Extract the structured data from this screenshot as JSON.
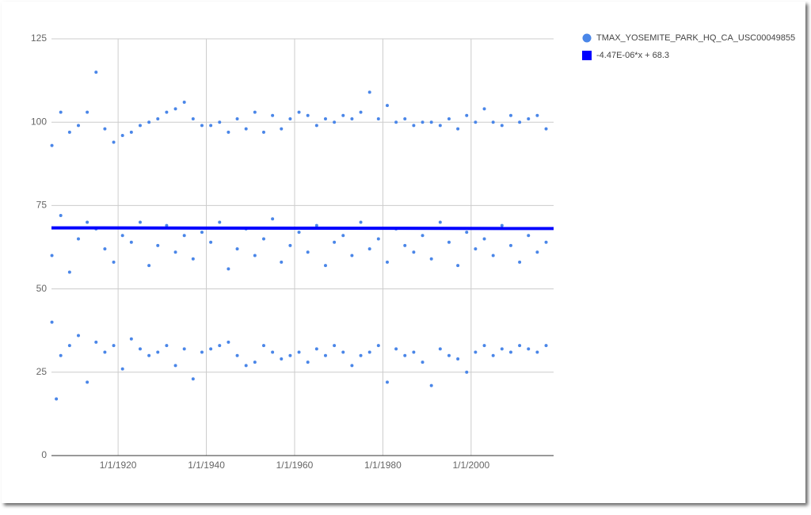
{
  "chart_data": {
    "type": "scatter",
    "xlim": [
      1904.9,
      2018.7
    ],
    "ylim": [
      0,
      125
    ],
    "yticks": [
      0,
      25,
      50,
      75,
      100,
      125
    ],
    "xticks": [
      {
        "value": 1920,
        "label": "1/1/1920"
      },
      {
        "value": 1940,
        "label": "1/1/1940"
      },
      {
        "value": 1960,
        "label": "1/1/1960"
      },
      {
        "value": 1980,
        "label": "1/1/1980"
      },
      {
        "value": 2000,
        "label": "1/1/2000"
      }
    ],
    "grid": true,
    "legend": "right",
    "series": [
      {
        "name": "TMAX_YOSEMITE_PARK_HQ_CA_USC00049855",
        "type": "scatter",
        "color": "#4a86e8",
        "x": [
          1905,
          1907,
          1909,
          1911,
          1913,
          1915,
          1917,
          1919,
          1921,
          1923,
          1925,
          1927,
          1929,
          1931,
          1933,
          1935,
          1937,
          1939,
          1941,
          1943,
          1945,
          1947,
          1949,
          1951,
          1953,
          1955,
          1957,
          1959,
          1961,
          1963,
          1965,
          1967,
          1969,
          1971,
          1973,
          1975,
          1977,
          1979,
          1981,
          1983,
          1985,
          1987,
          1989,
          1991,
          1993,
          1995,
          1997,
          1999,
          2001,
          2003,
          2005,
          2007,
          2009,
          2011,
          2013,
          2015,
          2017,
          1905,
          1907,
          1909,
          1911,
          1913,
          1915,
          1917,
          1919,
          1921,
          1923,
          1925,
          1927,
          1929,
          1931,
          1933,
          1935,
          1937,
          1939,
          1941,
          1943,
          1945,
          1947,
          1949,
          1951,
          1953,
          1955,
          1957,
          1959,
          1961,
          1963,
          1965,
          1967,
          1969,
          1971,
          1973,
          1975,
          1977,
          1979,
          1981,
          1983,
          1985,
          1987,
          1989,
          1991,
          1993,
          1995,
          1997,
          1999,
          2001,
          2003,
          2005,
          2007,
          2009,
          2011,
          2013,
          2015,
          2017,
          1905,
          1907,
          1909,
          1911,
          1913,
          1915,
          1917,
          1919,
          1921,
          1923,
          1925,
          1927,
          1929,
          1931,
          1933,
          1935,
          1937,
          1939,
          1941,
          1943,
          1945,
          1947,
          1949,
          1951,
          1953,
          1955,
          1957,
          1959,
          1961,
          1963,
          1965,
          1967,
          1969,
          1971,
          1973,
          1975,
          1977,
          1979,
          1981,
          1983,
          1985,
          1987,
          1989,
          1991,
          1993,
          1995,
          1997,
          1999,
          2001,
          2003,
          2005,
          2007,
          2009,
          2011,
          2013,
          2015,
          2017,
          1906
        ],
        "values": [
          93,
          103,
          97,
          99,
          103,
          115,
          98,
          94,
          96,
          97,
          99,
          100,
          101,
          103,
          104,
          106,
          101,
          99,
          99,
          100,
          97,
          101,
          98,
          103,
          97,
          102,
          98,
          101,
          103,
          102,
          99,
          101,
          100,
          102,
          101,
          103,
          109,
          101,
          105,
          100,
          101,
          99,
          100,
          100,
          99,
          101,
          98,
          102,
          100,
          104,
          100,
          99,
          102,
          100,
          101,
          102,
          98,
          60,
          72,
          55,
          65,
          70,
          68,
          62,
          58,
          66,
          64,
          70,
          57,
          63,
          69,
          61,
          66,
          59,
          67,
          64,
          70,
          56,
          62,
          68,
          60,
          65,
          71,
          58,
          63,
          67,
          61,
          69,
          57,
          64,
          66,
          60,
          70,
          62,
          65,
          58,
          68,
          63,
          61,
          66,
          59,
          70,
          64,
          57,
          67,
          62,
          65,
          60,
          69,
          63,
          58,
          66,
          61,
          64,
          40,
          30,
          33,
          36,
          22,
          34,
          31,
          33,
          26,
          35,
          32,
          30,
          31,
          33,
          27,
          32,
          23,
          31,
          32,
          33,
          34,
          30,
          27,
          28,
          33,
          31,
          29,
          30,
          31,
          28,
          32,
          30,
          33,
          31,
          27,
          30,
          31,
          33,
          22,
          32,
          30,
          31,
          28,
          21,
          32,
          30,
          29,
          25,
          31,
          33,
          30,
          32,
          31,
          33,
          32,
          31,
          33,
          17
        ]
      },
      {
        "name": "-4.47E-06*x + 68.3",
        "type": "line",
        "color": "#0000ff",
        "x": [
          1904.9,
          2018.7
        ],
        "values": [
          68.3,
          68.1
        ]
      }
    ]
  }
}
